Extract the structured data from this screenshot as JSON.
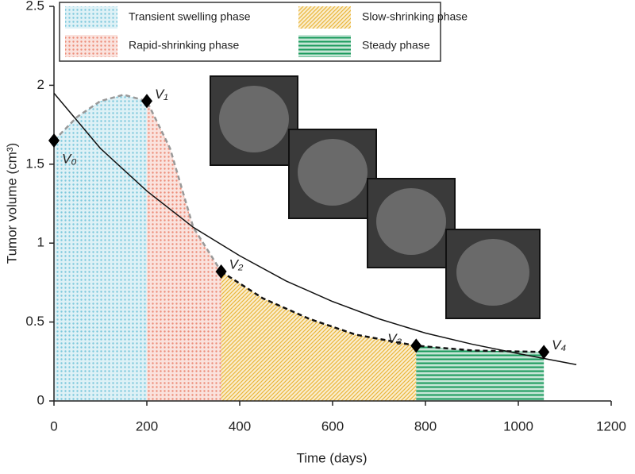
{
  "chart_data": {
    "type": "line",
    "xlabel": "Time (days)",
    "ylabel": "Tumor volume (cm³)",
    "xlim": [
      0,
      1200
    ],
    "ylim": [
      0,
      2.5
    ],
    "xticks": [
      0,
      200,
      400,
      600,
      800,
      1000,
      1200
    ],
    "yticks": [
      0,
      0.5,
      1,
      1.5,
      2,
      2.5
    ],
    "grid": false,
    "phases": [
      {
        "name": "Transient swelling phase",
        "color": "#7cc8dc",
        "pattern": "dots",
        "x": [
          0,
          200
        ],
        "curve": 0
      },
      {
        "name": "Rapid-shrinking phase",
        "color": "#ec8c78",
        "pattern": "dots",
        "x": [
          200,
          360
        ],
        "curve": 0
      },
      {
        "name": "Slow-shrinking phase",
        "color": "#eab63a",
        "pattern": "diagonal",
        "x": [
          360,
          780
        ],
        "curve": 1
      },
      {
        "name": "Steady phase",
        "color": "#17995a",
        "pattern": "horizontal",
        "x": [
          780,
          1055
        ],
        "curve": 1
      }
    ],
    "curves": [
      {
        "color": "#999999",
        "dash": true,
        "x": [
          0,
          50,
          100,
          150,
          200,
          250,
          300,
          360
        ],
        "values": [
          1.65,
          1.8,
          1.9,
          1.94,
          1.9,
          1.6,
          1.1,
          0.82
        ]
      },
      {
        "color": "#111111",
        "dash": true,
        "x": [
          360,
          450,
          550,
          650,
          780,
          900,
          1055
        ],
        "values": [
          0.82,
          0.65,
          0.52,
          0.42,
          0.35,
          0.32,
          0.31
        ]
      },
      {
        "color": "#111111",
        "dash": false,
        "x": [
          0,
          100,
          200,
          300,
          400,
          500,
          600,
          700,
          800,
          900,
          1000,
          1125
        ],
        "values": [
          1.95,
          1.6,
          1.33,
          1.1,
          0.92,
          0.76,
          0.63,
          0.52,
          0.43,
          0.36,
          0.3,
          0.23
        ]
      }
    ],
    "points": {
      "labels": [
        "V₀",
        "V₁",
        "V₂",
        "V₃",
        "V₄"
      ],
      "x": [
        0,
        200,
        360,
        780,
        1055
      ],
      "values": [
        1.65,
        1.9,
        0.82,
        0.35,
        0.31
      ]
    }
  }
}
